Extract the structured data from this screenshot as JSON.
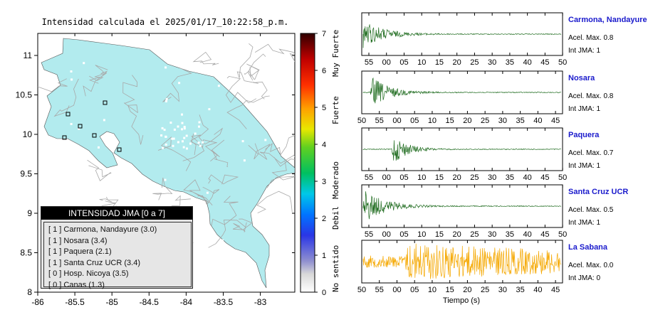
{
  "map": {
    "title": "Intensidad calculada el 2025/01/17_10:22:58_p.m.",
    "lon_ticks": [
      "-86",
      "-85.5",
      "-85",
      "-84.5",
      "-84",
      "-83.5",
      "-83"
    ],
    "lat_ticks": [
      "11",
      "10.5",
      "10",
      "9.5",
      "9",
      "8.5",
      "8"
    ],
    "colorbar_ticks": [
      "0",
      "1",
      "2",
      "3",
      "4",
      "5",
      "6",
      "7"
    ],
    "colorbar_labels": [
      "No sentido",
      "Debil",
      "Moderado",
      "Fuerte",
      "Muy Fuerte"
    ]
  },
  "legend": {
    "title": "INTENSIDAD JMA [0 a 7]",
    "items": [
      "[ 1 ]  Carmona, Nandayure (3.0)",
      "[ 1 ]  Nosara (3.4)",
      "[ 1 ]  Paquera (2.1)",
      "[ 1 ]  Santa Cruz UCR (3.4)",
      "[ 0 ]  Hosp. Nicoya (3.5)",
      "[ 0 ]  Canas (1.3)"
    ]
  },
  "colors": {
    "land": "#b2ebee",
    "road": "#a8a8a8",
    "trace_green": "#1e6b1e",
    "trace_orange": "#f5a800",
    "station_label": "#1a1acc"
  },
  "chart_data": {
    "type": "line",
    "xlabel": "Tiempo (s)",
    "panels": [
      {
        "name": "Carmona, Nandayure",
        "acel": "Acel. Max. 0.8",
        "jma": "Int JMA: 1",
        "ticks": [
          "55",
          "00",
          "05",
          "10",
          "15",
          "20",
          "25",
          "30",
          "35",
          "40",
          "45",
          "50"
        ],
        "tick_start": 55,
        "x_range": [
          50.3,
          52
        ],
        "onset": 50.7,
        "amp": 0.9,
        "decay": 6,
        "noise": 0.02,
        "color": "green"
      },
      {
        "name": "Nosara",
        "acel": "Acel. Max. 0.8",
        "jma": "Int JMA: 1",
        "ticks": [
          "50",
          "55",
          "00",
          "05",
          "10",
          "15",
          "20",
          "25",
          "30",
          "35",
          "40",
          "45"
        ],
        "tick_start": 50,
        "x_range": [
          50,
          49.5
        ],
        "onset": 52.5,
        "amp": 0.9,
        "decay": 5,
        "noise": 0.02,
        "color": "green"
      },
      {
        "name": "Paquera",
        "acel": "Acel. Max. 0.7",
        "jma": "Int JMA: 1",
        "ticks": [
          "55",
          "00",
          "05",
          "10",
          "15",
          "20",
          "25",
          "30",
          "35",
          "40",
          "45",
          "50"
        ],
        "tick_start": 55,
        "x_range": [
          51,
          50.5
        ],
        "onset": 60.5,
        "amp": 0.9,
        "decay": 4,
        "noise": 0.02,
        "color": "green"
      },
      {
        "name": "Santa Cruz UCR",
        "acel": "Acel. Max. 0.5",
        "jma": "Int JMA: 1",
        "ticks": [
          "55",
          "00",
          "05",
          "10",
          "15",
          "20",
          "25",
          "30",
          "35",
          "40",
          "45",
          "50"
        ],
        "tick_start": 55,
        "x_range": [
          51,
          50.5
        ],
        "onset": 52,
        "amp": 0.9,
        "decay": 6,
        "noise": 0.02,
        "color": "green"
      },
      {
        "name": "La Sabana",
        "acel": "Acel. Max. 0.0",
        "jma": "Int JMA: 0",
        "ticks": [
          "50",
          "55",
          "00",
          "05",
          "10",
          "15",
          "20",
          "25",
          "30",
          "35",
          "40",
          "45"
        ],
        "tick_start": 50,
        "x_range": [
          50,
          49.5
        ],
        "onset": 63,
        "amp": 0.75,
        "decay": 60,
        "noise": 0.25,
        "color": "orange"
      }
    ]
  }
}
